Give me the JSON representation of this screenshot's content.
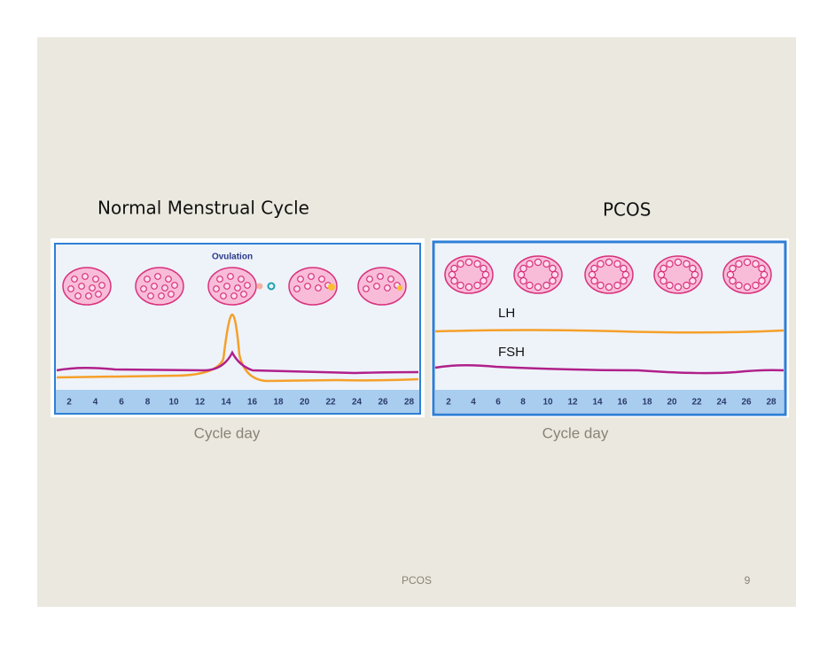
{
  "slide": {
    "left": {
      "title": "Normal Menstrual Cycle",
      "annotation": "Ovulation",
      "days": [
        "2",
        "4",
        "6",
        "8",
        "10",
        "12",
        "14",
        "16",
        "18",
        "20",
        "22",
        "24",
        "26",
        "28"
      ],
      "axis_label": "Cycle day"
    },
    "right": {
      "title": "PCOS",
      "lh_label": "LH",
      "fsh_label": "FSH",
      "days": [
        "2",
        "4",
        "6",
        "8",
        "10",
        "12",
        "14",
        "16",
        "18",
        "20",
        "22",
        "24",
        "26",
        "28"
      ],
      "axis_label": "Cycle day"
    },
    "footer": {
      "center": "PCOS",
      "page_number": "9"
    }
  }
}
